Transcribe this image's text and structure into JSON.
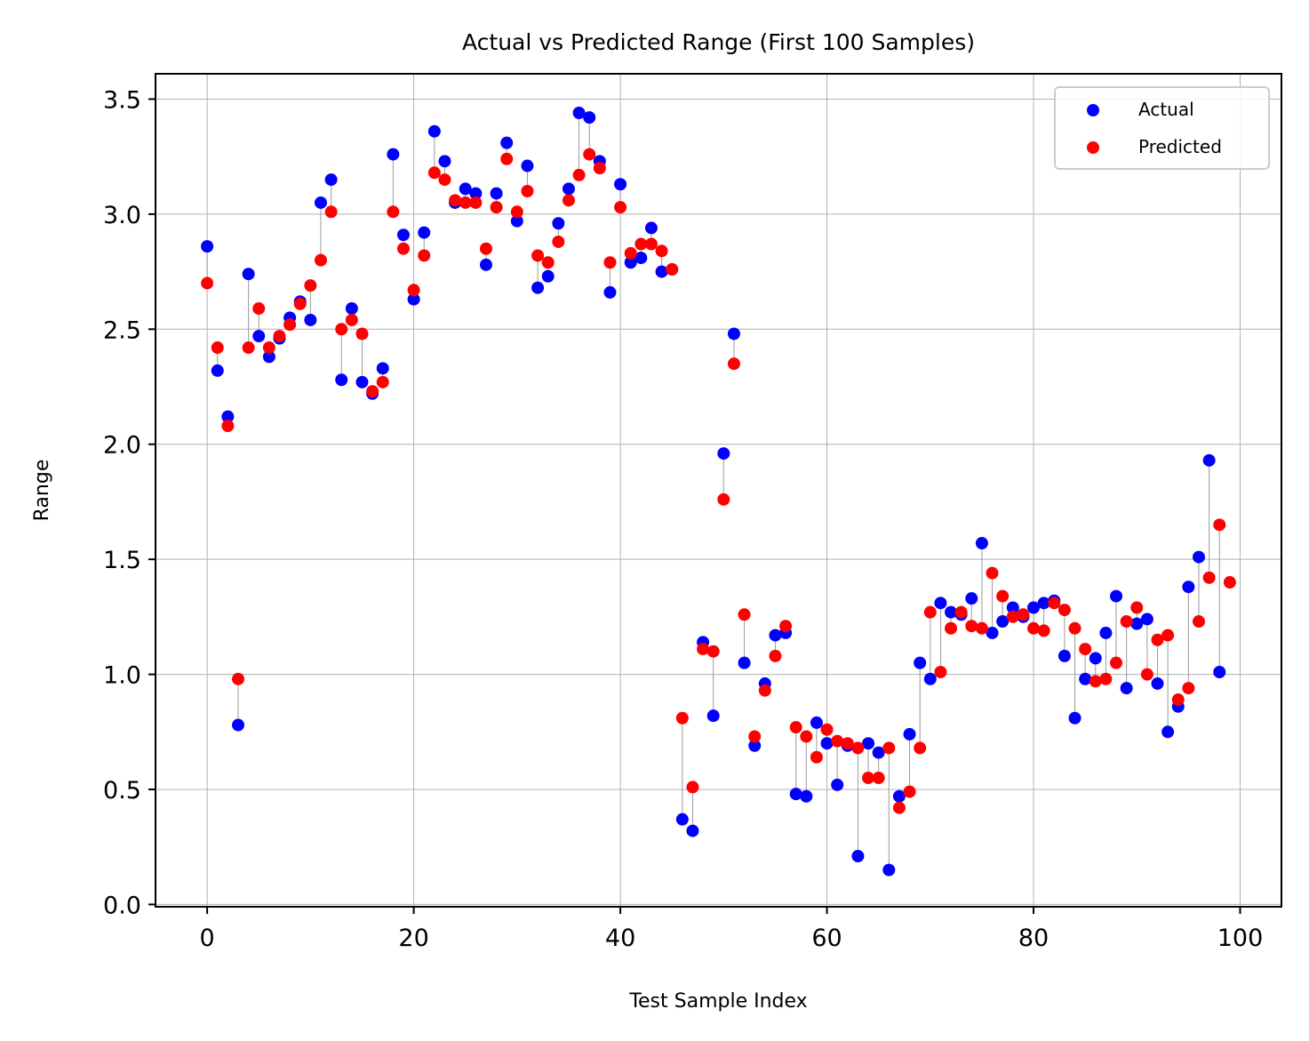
{
  "chart_data": {
    "type": "scatter",
    "title": "Actual vs Predicted Range (First 100 Samples)",
    "xlabel": "Test Sample Index",
    "ylabel": "Range",
    "xlim": [
      -5,
      104
    ],
    "ylim": [
      -0.01,
      3.61
    ],
    "xticks": [
      0,
      20,
      40,
      60,
      80,
      100
    ],
    "yticks": [
      0.0,
      0.5,
      1.0,
      1.5,
      2.0,
      2.5,
      3.0,
      3.5
    ],
    "xtick_labels": [
      "0",
      "20",
      "40",
      "60",
      "80",
      "100"
    ],
    "ytick_labels": [
      "0.0",
      "0.5",
      "1.0",
      "1.5",
      "2.0",
      "2.5",
      "3.0",
      "3.5"
    ],
    "grid": true,
    "legend_position": "top-right",
    "connector_lines": true,
    "series": [
      {
        "name": "Actual",
        "color": "#0000ff",
        "values": [
          2.86,
          2.32,
          2.12,
          0.78,
          2.74,
          2.47,
          2.38,
          2.46,
          2.55,
          2.62,
          2.54,
          3.05,
          3.15,
          2.28,
          2.59,
          2.27,
          2.22,
          2.33,
          3.26,
          2.91,
          2.63,
          2.92,
          3.36,
          3.23,
          3.05,
          3.11,
          3.09,
          2.78,
          3.09,
          3.31,
          2.97,
          3.21,
          2.68,
          2.73,
          2.96,
          3.11,
          3.44,
          3.42,
          3.23,
          2.66,
          3.13,
          2.79,
          2.81,
          2.94,
          2.75,
          2.76,
          0.37,
          0.32,
          1.14,
          0.82,
          1.96,
          2.48,
          1.05,
          0.69,
          0.96,
          1.17,
          1.18,
          0.48,
          0.47,
          0.79,
          0.7,
          0.52,
          0.69,
          0.21,
          0.7,
          0.66,
          0.15,
          0.47,
          0.74,
          1.05,
          0.98,
          1.31,
          1.27,
          1.26,
          1.33,
          1.57,
          1.18,
          1.23,
          1.29,
          1.25,
          1.29,
          1.31,
          1.32,
          1.08,
          0.81,
          0.98,
          1.07,
          1.18,
          1.34,
          0.94,
          1.22,
          1.24,
          0.96,
          0.75,
          0.86,
          1.38,
          1.51,
          1.93,
          1.01,
          null
        ]
      },
      {
        "name": "Predicted",
        "color": "#ff0000",
        "values": [
          2.7,
          2.42,
          2.08,
          0.98,
          2.42,
          2.59,
          2.42,
          2.47,
          2.52,
          2.61,
          2.69,
          2.8,
          3.01,
          2.5,
          2.54,
          2.48,
          2.23,
          2.27,
          3.01,
          2.85,
          2.67,
          2.82,
          3.18,
          3.15,
          3.06,
          3.05,
          3.05,
          2.85,
          3.03,
          3.24,
          3.01,
          3.1,
          2.82,
          2.79,
          2.88,
          3.06,
          3.17,
          3.26,
          3.2,
          2.79,
          3.03,
          2.83,
          2.87,
          2.87,
          2.84,
          2.76,
          0.81,
          0.51,
          1.11,
          1.1,
          1.76,
          2.35,
          1.26,
          0.73,
          0.93,
          1.08,
          1.21,
          0.77,
          0.73,
          0.64,
          0.76,
          0.71,
          0.7,
          0.68,
          0.55,
          0.55,
          0.68,
          0.42,
          0.49,
          0.68,
          1.27,
          1.01,
          1.2,
          1.27,
          1.21,
          1.2,
          1.44,
          1.34,
          1.25,
          1.26,
          1.2,
          1.19,
          1.31,
          1.28,
          1.2,
          1.11,
          0.97,
          0.98,
          1.05,
          1.23,
          1.29,
          1.0,
          1.15,
          1.17,
          0.89,
          0.94,
          1.23,
          1.42,
          1.65,
          1.4
        ]
      }
    ]
  }
}
